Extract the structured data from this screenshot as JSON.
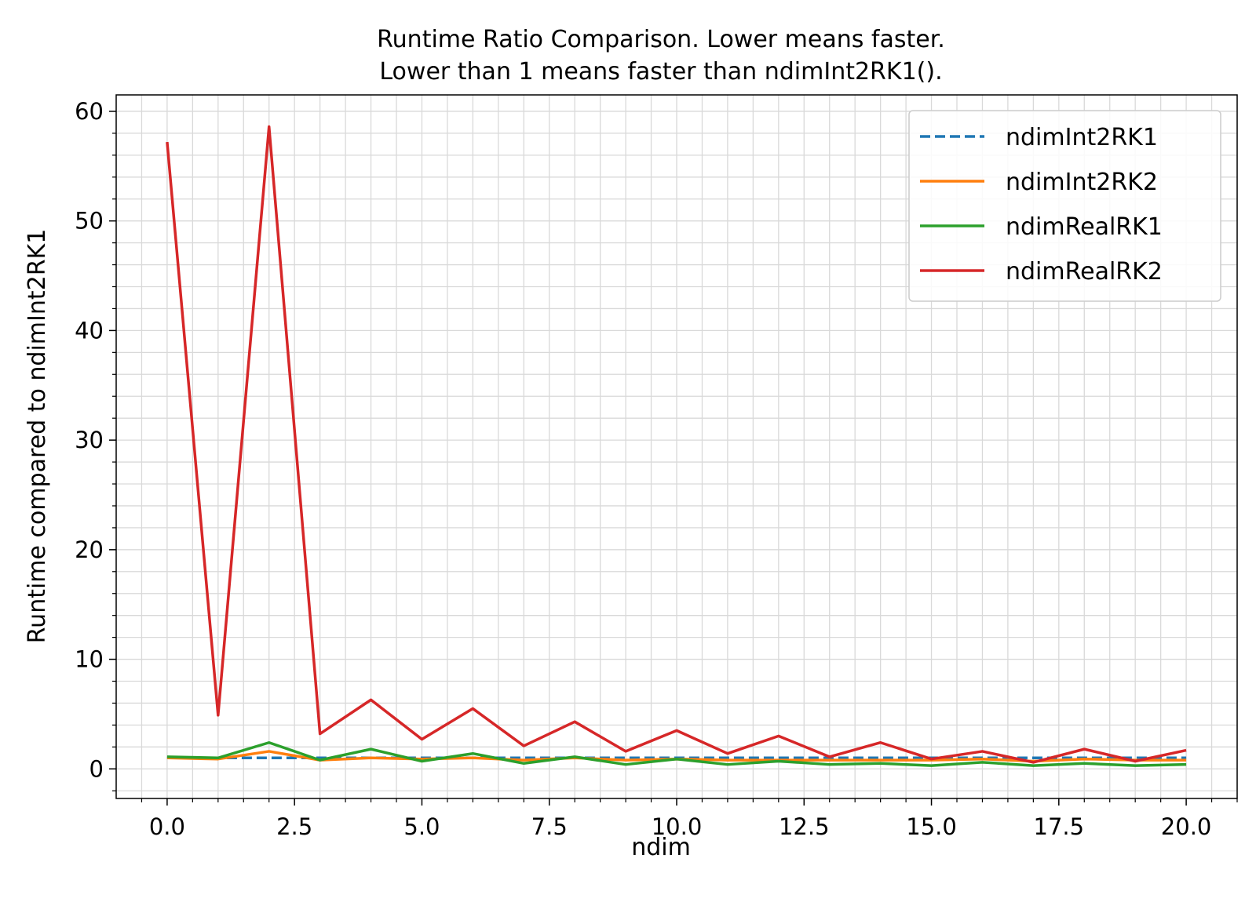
{
  "chart_data": {
    "type": "line",
    "title": "Runtime Ratio Comparison. Lower means faster.",
    "subtitle": "Lower than 1 means faster than ndimInt2RK1().",
    "xlabel": "ndim",
    "ylabel": "Runtime compared to ndimInt2RK1",
    "xlim": [
      -1,
      21
    ],
    "ylim": [
      -2.7,
      61.5
    ],
    "x_ticks": [
      0.0,
      2.5,
      5.0,
      7.5,
      10.0,
      12.5,
      15.0,
      17.5,
      20.0
    ],
    "x_tick_labels": [
      "0.0",
      "2.5",
      "5.0",
      "7.5",
      "10.0",
      "12.5",
      "15.0",
      "17.5",
      "20.0"
    ],
    "y_ticks": [
      0,
      10,
      20,
      30,
      40,
      50,
      60
    ],
    "y_tick_labels": [
      "0",
      "10",
      "20",
      "30",
      "40",
      "50",
      "60"
    ],
    "grid": true,
    "minor_grid": true,
    "legend_position": "top-right",
    "x": [
      0,
      1,
      2,
      3,
      4,
      5,
      6,
      7,
      8,
      9,
      10,
      11,
      12,
      13,
      14,
      15,
      16,
      17,
      18,
      19,
      20
    ],
    "series": [
      {
        "name": "ndimInt2RK1",
        "color": "#1f77b4",
        "style": "dashed",
        "values": [
          1,
          1,
          1,
          1,
          1,
          1,
          1,
          1,
          1,
          1,
          1,
          1,
          1,
          1,
          1,
          1,
          1,
          1,
          1,
          1,
          1
        ]
      },
      {
        "name": "ndimInt2RK2",
        "color": "#ff7f0e",
        "style": "solid",
        "values": [
          1.0,
          0.9,
          1.6,
          0.8,
          1.0,
          0.9,
          1.0,
          0.8,
          1.0,
          0.8,
          0.9,
          0.8,
          0.8,
          0.8,
          0.8,
          0.8,
          0.9,
          0.7,
          0.9,
          0.8,
          0.8
        ]
      },
      {
        "name": "ndimRealRK1",
        "color": "#2ca02c",
        "style": "solid",
        "values": [
          1.1,
          1.0,
          2.4,
          0.8,
          1.8,
          0.7,
          1.4,
          0.5,
          1.1,
          0.4,
          0.9,
          0.4,
          0.7,
          0.4,
          0.5,
          0.3,
          0.6,
          0.3,
          0.5,
          0.3,
          0.4
        ]
      },
      {
        "name": "ndimRealRK2",
        "color": "#d62728",
        "style": "solid",
        "values": [
          57.2,
          4.9,
          58.6,
          3.2,
          6.3,
          2.7,
          5.5,
          2.1,
          4.3,
          1.6,
          3.5,
          1.4,
          3.0,
          1.1,
          2.4,
          0.9,
          1.6,
          0.6,
          1.8,
          0.7,
          1.7
        ]
      }
    ]
  }
}
